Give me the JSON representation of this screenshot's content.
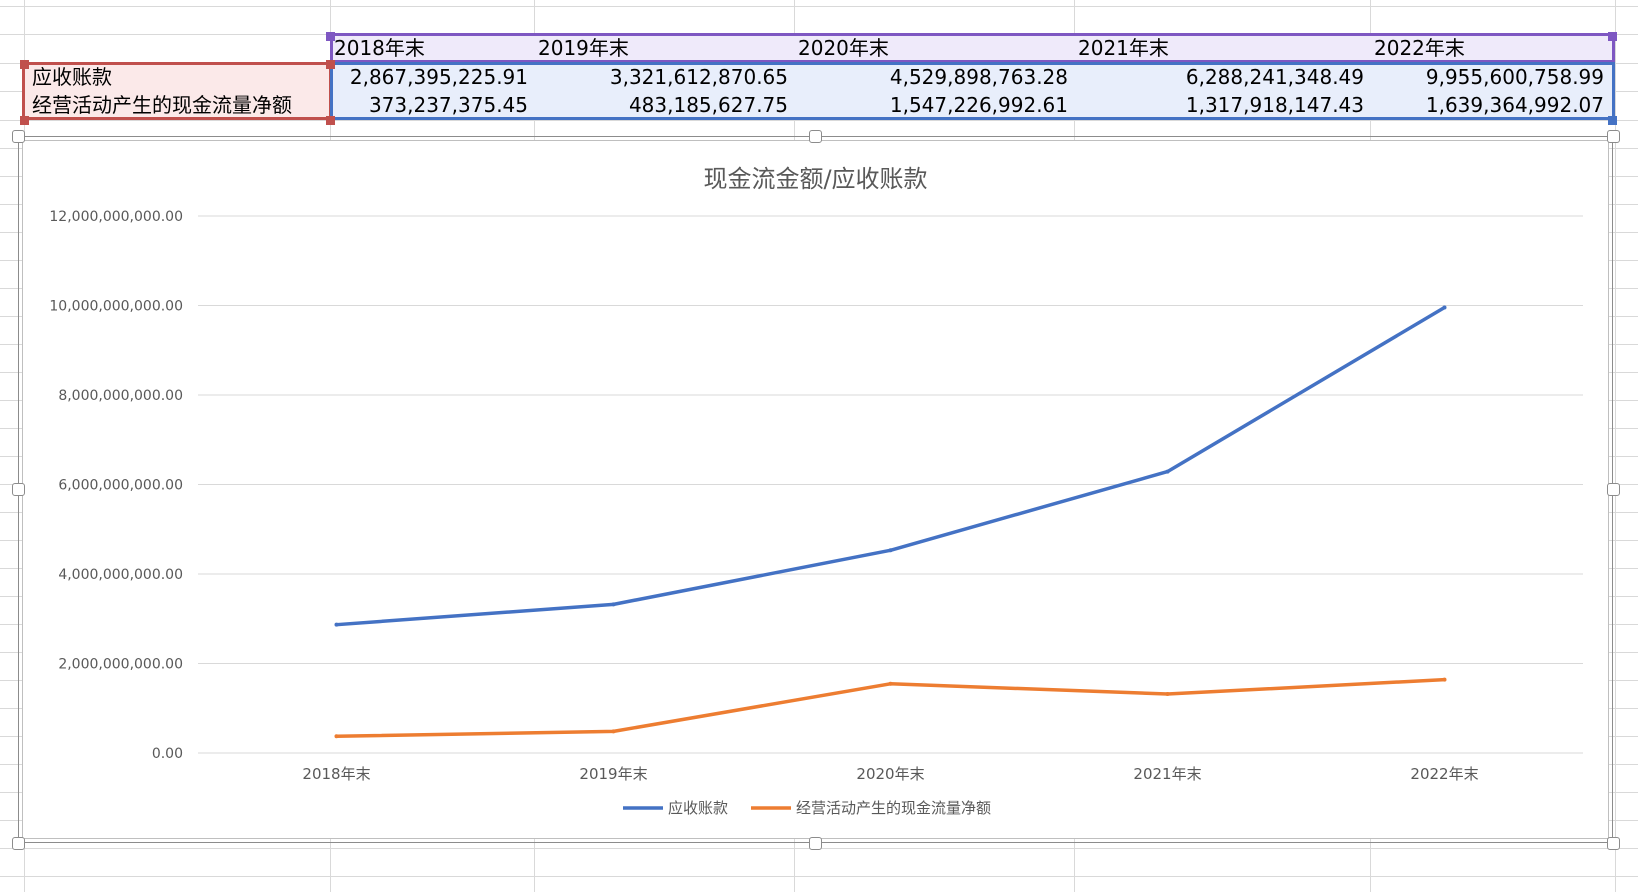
{
  "table": {
    "years": [
      "2018年末",
      "2019年末",
      "2020年末",
      "2021年末",
      "2022年末"
    ],
    "rows": [
      {
        "label": "应收账款",
        "values": [
          "2,867,395,225.91",
          "3,321,612,870.65",
          "4,529,898,763.28",
          "6,288,241,348.49",
          "9,955,600,758.99"
        ]
      },
      {
        "label": "经营活动产生的现金流量净额",
        "values": [
          "373,237,375.45",
          "483,185,627.75",
          "1,547,226,992.61",
          "1,317,918,147.43",
          "1,639,364,992.07"
        ]
      }
    ]
  },
  "selection_colors": {
    "header": "#7e57c2",
    "label": "#c0504d",
    "data": "#4472c4"
  },
  "chart_data": {
    "type": "line",
    "title": "现金流金额/应收账款",
    "categories": [
      "2018年末",
      "2019年末",
      "2020年末",
      "2021年末",
      "2022年末"
    ],
    "series": [
      {
        "name": "应收账款",
        "color": "#4472c4",
        "values": [
          2867395225.91,
          3321612870.65,
          4529898763.28,
          6288241348.49,
          9955600758.99
        ]
      },
      {
        "name": "经营活动产生的现金流量净额",
        "color": "#ed7d31",
        "values": [
          373237375.45,
          483185627.75,
          1547226992.61,
          1317918147.43,
          1639364992.07
        ]
      }
    ],
    "ylim": [
      0,
      12000000000
    ],
    "yticks": [
      0,
      2000000000,
      4000000000,
      6000000000,
      8000000000,
      10000000000,
      12000000000
    ],
    "ytick_labels": [
      "0.00",
      "2,000,000,000.00",
      "4,000,000,000.00",
      "6,000,000,000.00",
      "8,000,000,000.00",
      "10,000,000,000.00",
      "12,000,000,000.00"
    ],
    "grid": true,
    "legend_position": "bottom"
  }
}
